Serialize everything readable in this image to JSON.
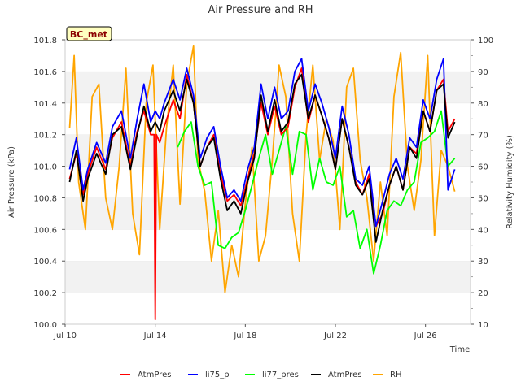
{
  "chart_data": {
    "type": "line",
    "title": "Air Pressure and RH",
    "site_label": "BC_met",
    "xlabel": "Time",
    "ylabel_left": "Air Pressure (kPa)",
    "ylabel_right": "Relativity Humidity (%)",
    "x_ticks": [
      {
        "label": "Jul 10",
        "day": 10
      },
      {
        "label": "Jul 14",
        "day": 14
      },
      {
        "label": "Jul 18",
        "day": 18
      },
      {
        "label": "Jul 22",
        "day": 22
      },
      {
        "label": "Jul 26",
        "day": 26
      }
    ],
    "xlim_days": [
      10,
      28
    ],
    "ylim_left": [
      100.0,
      101.8
    ],
    "ylim_right": [
      10,
      100
    ],
    "y_ticks_left": [
      "100.0",
      "100.2",
      "100.4",
      "100.6",
      "100.8",
      "101.0",
      "101.2",
      "101.4",
      "101.6",
      "101.8"
    ],
    "y_ticks_right": [
      "10",
      "20",
      "30",
      "40",
      "50",
      "60",
      "70",
      "80",
      "90",
      "100"
    ],
    "grid": "horizontal bands",
    "legend_position": "bottom",
    "series": [
      {
        "name": "AtmPres",
        "color": "#ff0000",
        "axis": "left",
        "x": [
          10.2,
          10.5,
          10.8,
          11.0,
          11.4,
          11.8,
          12.1,
          12.5,
          12.9,
          13.2,
          13.5,
          13.8,
          13.95,
          14.0,
          14.05,
          14.2,
          14.4,
          14.8,
          15.1,
          15.4,
          15.7,
          16.0,
          16.3,
          16.6,
          16.9,
          17.2,
          17.5,
          17.8,
          18.1,
          18.4,
          18.7,
          19.0,
          19.3,
          19.6,
          19.9,
          20.2,
          20.5,
          20.8,
          21.1,
          21.4,
          21.7,
          22.0,
          22.3,
          22.6,
          22.9,
          23.2,
          23.5,
          23.8,
          24.1,
          24.4,
          24.7,
          25.0,
          25.3,
          25.6,
          25.9,
          26.2,
          26.5,
          26.8,
          27.0,
          27.3
        ],
        "y": [
          100.92,
          101.08,
          100.82,
          100.95,
          101.12,
          100.98,
          101.18,
          101.28,
          101.0,
          101.22,
          101.35,
          101.2,
          101.2,
          100.03,
          101.2,
          101.15,
          101.25,
          101.42,
          101.3,
          101.58,
          101.4,
          101.0,
          101.12,
          101.2,
          100.95,
          100.78,
          100.82,
          100.75,
          100.92,
          101.08,
          101.4,
          101.2,
          101.38,
          101.2,
          101.25,
          101.5,
          101.62,
          101.28,
          101.45,
          101.32,
          101.18,
          100.98,
          101.3,
          101.12,
          100.9,
          100.82,
          100.95,
          100.62,
          100.7,
          100.88,
          101.0,
          100.85,
          101.12,
          101.08,
          101.35,
          101.22,
          101.48,
          101.55,
          101.22,
          101.3
        ]
      },
      {
        "name": "li75_p",
        "color": "#0000ff",
        "axis": "left",
        "x": [
          10.2,
          10.5,
          10.8,
          11.0,
          11.4,
          11.8,
          12.1,
          12.5,
          12.9,
          13.2,
          13.5,
          13.8,
          14.0,
          14.2,
          14.4,
          14.8,
          15.1,
          15.4,
          15.7,
          16.0,
          16.3,
          16.6,
          16.9,
          17.2,
          17.5,
          17.8,
          18.1,
          18.4,
          18.7,
          19.0,
          19.3,
          19.6,
          19.9,
          20.2,
          20.5,
          20.8,
          21.1,
          21.4,
          21.7,
          22.0,
          22.3,
          22.6,
          22.9,
          23.2,
          23.5,
          23.8,
          24.1,
          24.4,
          24.7,
          25.0,
          25.3,
          25.6,
          25.9,
          26.2,
          26.5,
          26.8,
          27.0,
          27.3
        ],
        "y": [
          100.98,
          101.18,
          100.85,
          100.98,
          101.15,
          101.02,
          101.25,
          101.35,
          101.05,
          101.3,
          101.52,
          101.28,
          101.35,
          101.3,
          101.4,
          101.55,
          101.42,
          101.62,
          101.45,
          101.05,
          101.18,
          101.25,
          101.0,
          100.8,
          100.85,
          100.78,
          100.98,
          101.12,
          101.52,
          101.3,
          101.5,
          101.3,
          101.35,
          101.6,
          101.68,
          101.35,
          101.52,
          101.4,
          101.25,
          101.05,
          101.38,
          101.2,
          100.92,
          100.88,
          101.0,
          100.62,
          100.78,
          100.95,
          101.05,
          100.92,
          101.18,
          101.12,
          101.42,
          101.3,
          101.55,
          101.68,
          100.85,
          100.98
        ]
      },
      {
        "name": "li77_pres",
        "color": "#00ff00",
        "axis": "left",
        "x": [
          15.0,
          15.3,
          15.6,
          15.9,
          16.2,
          16.5,
          16.8,
          17.1,
          17.4,
          17.7,
          18.0,
          18.3,
          18.6,
          18.9,
          19.2,
          19.5,
          19.8,
          20.1,
          20.4,
          20.7,
          21.0,
          21.3,
          21.6,
          21.9,
          22.2,
          22.5,
          22.8,
          23.1,
          23.4,
          23.7,
          24.0,
          24.3,
          24.6,
          24.9,
          25.2,
          25.5,
          25.8,
          26.1,
          26.4,
          26.7,
          27.0,
          27.3
        ],
        "y": [
          101.12,
          101.22,
          101.28,
          101.0,
          100.88,
          100.9,
          100.5,
          100.48,
          100.55,
          100.58,
          100.72,
          100.88,
          101.05,
          101.2,
          100.95,
          101.1,
          101.25,
          100.95,
          101.22,
          101.2,
          100.85,
          101.05,
          100.9,
          100.88,
          101.0,
          100.68,
          100.72,
          100.48,
          100.6,
          100.32,
          100.5,
          100.72,
          100.78,
          100.75,
          100.85,
          100.9,
          101.15,
          101.18,
          101.22,
          101.35,
          101.0,
          101.05
        ]
      },
      {
        "name": "AtmPres",
        "color": "#000000",
        "axis": "left",
        "x": [
          10.2,
          10.5,
          10.8,
          11.0,
          11.4,
          11.8,
          12.1,
          12.5,
          12.9,
          13.2,
          13.5,
          13.8,
          14.0,
          14.2,
          14.4,
          14.8,
          15.1,
          15.4,
          15.7,
          16.0,
          16.3,
          16.6,
          16.9,
          17.2,
          17.5,
          17.8,
          18.1,
          18.4,
          18.7,
          19.0,
          19.3,
          19.6,
          19.9,
          20.2,
          20.5,
          20.8,
          21.1,
          21.4,
          21.7,
          22.0,
          22.3,
          22.6,
          22.9,
          23.2,
          23.5,
          23.8,
          24.1,
          24.4,
          24.7,
          25.0,
          25.3,
          25.6,
          25.9,
          26.2,
          26.5,
          26.8,
          27.0,
          27.3
        ],
        "y": [
          100.9,
          101.1,
          100.78,
          100.92,
          101.08,
          100.95,
          101.2,
          101.25,
          100.98,
          101.2,
          101.38,
          101.22,
          101.28,
          101.22,
          101.35,
          101.48,
          101.35,
          101.55,
          101.4,
          101.0,
          101.12,
          101.18,
          100.92,
          100.72,
          100.78,
          100.7,
          100.9,
          101.05,
          101.45,
          101.22,
          101.42,
          101.22,
          101.28,
          101.52,
          101.58,
          101.3,
          101.45,
          101.32,
          101.18,
          100.98,
          101.3,
          101.12,
          100.88,
          100.82,
          100.92,
          100.52,
          100.72,
          100.88,
          101.0,
          100.85,
          101.12,
          101.05,
          101.35,
          101.22,
          101.48,
          101.52,
          101.18,
          101.28
        ]
      },
      {
        "name": "RH",
        "color": "#ffa500",
        "axis": "right",
        "x": [
          10.2,
          10.4,
          10.6,
          10.9,
          11.2,
          11.5,
          11.8,
          12.1,
          12.4,
          12.7,
          13.0,
          13.3,
          13.6,
          13.9,
          14.2,
          14.5,
          14.8,
          15.1,
          15.4,
          15.7,
          15.9,
          16.2,
          16.5,
          16.8,
          17.1,
          17.4,
          17.7,
          18.0,
          18.3,
          18.6,
          18.9,
          19.2,
          19.5,
          19.8,
          20.1,
          20.4,
          20.7,
          21.0,
          21.3,
          21.6,
          21.9,
          22.2,
          22.5,
          22.8,
          23.1,
          23.4,
          23.7,
          24.0,
          24.3,
          24.6,
          24.9,
          25.2,
          25.5,
          25.8,
          26.1,
          26.4,
          26.7,
          27.0,
          27.3
        ],
        "y": [
          72,
          95,
          55,
          40,
          82,
          86,
          50,
          40,
          60,
          91,
          45,
          32,
          80,
          92,
          40,
          72,
          92,
          48,
          86,
          98,
          62,
          52,
          30,
          46,
          20,
          35,
          25,
          48,
          66,
          30,
          38,
          62,
          92,
          82,
          45,
          30,
          70,
          92,
          62,
          75,
          68,
          40,
          85,
          91,
          62,
          50,
          30,
          55,
          38,
          82,
          96,
          60,
          46,
          62,
          95,
          38,
          65,
          60,
          52
        ]
      }
    ]
  }
}
